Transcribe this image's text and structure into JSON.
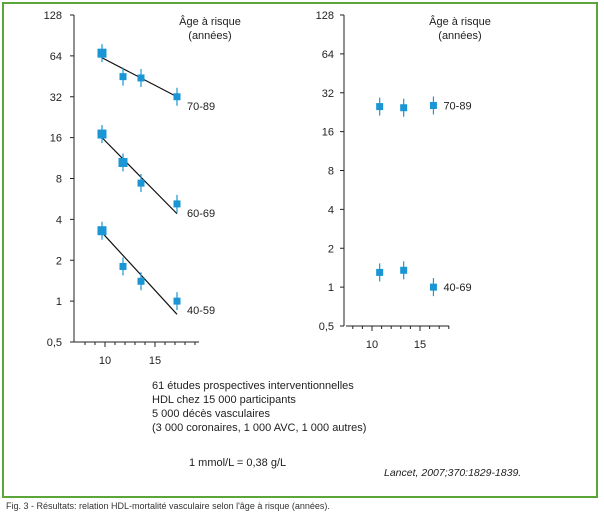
{
  "colors": {
    "marker": "#1a96d4",
    "frame": "#5aa63a",
    "axis": "#222222"
  },
  "y_tick_labels": [
    "0,5",
    "1",
    "2",
    "4",
    "8",
    "16",
    "32",
    "64",
    "128"
  ],
  "x_tick_labels": [
    "10",
    "15"
  ],
  "chart_data": [
    {
      "type": "scatter",
      "ylog": true,
      "ylim": [
        0.5,
        128
      ],
      "xlim": [
        8,
        19
      ],
      "legend_title": "Âge à risque\n(années)",
      "legend_title_lines": [
        "Âge à risque",
        "(années)"
      ],
      "series": [
        {
          "name": "70-89",
          "x": [
            9.7,
            11.8,
            13.6,
            17.2
          ],
          "y": [
            67,
            45,
            44,
            32
          ],
          "fit": [
            [
              9.7,
              62
            ],
            [
              17.2,
              32
            ]
          ]
        },
        {
          "name": "60-69",
          "x": [
            9.7,
            11.8,
            13.6,
            17.2
          ],
          "y": [
            17,
            10.5,
            7.4,
            5.2
          ],
          "fit": [
            [
              9.7,
              16
            ],
            [
              17.2,
              4.4
            ]
          ]
        },
        {
          "name": "40-59",
          "x": [
            9.7,
            11.8,
            13.6,
            17.2
          ],
          "y": [
            3.3,
            1.8,
            1.4,
            1.0
          ],
          "fit": [
            [
              9.7,
              3.2
            ],
            [
              17.2,
              0.8
            ]
          ]
        }
      ]
    },
    {
      "type": "scatter",
      "ylog": true,
      "ylim": [
        0.5,
        128
      ],
      "xlim": [
        8,
        19
      ],
      "legend_title": "Âge à risque\n(années)",
      "legend_title_lines": [
        "Âge à risque",
        "(années)"
      ],
      "series": [
        {
          "name": "70-89",
          "x": [
            10.8,
            13.3,
            16.4
          ],
          "y": [
            25,
            24.5,
            25.5
          ]
        },
        {
          "name": "40-69",
          "x": [
            10.8,
            13.3,
            16.4
          ],
          "y": [
            1.3,
            1.35,
            1.0
          ]
        }
      ]
    }
  ],
  "notes": {
    "lines": [
      "61 études prospectives interventionnelles",
      "HDL chez 15 000 participants",
      "5 000 décès vasculaires",
      "(3 000 coronaires, 1 000 AVC, 1 000 autres)"
    ],
    "conversion": "1 mmol/L = 0,38 g/L",
    "reference": "Lancet, 2007;370:1829-1839."
  },
  "caption": "Fig. 3 - Résultats: relation HDL-mortalité vasculaire selon l'âge à risque (années)."
}
